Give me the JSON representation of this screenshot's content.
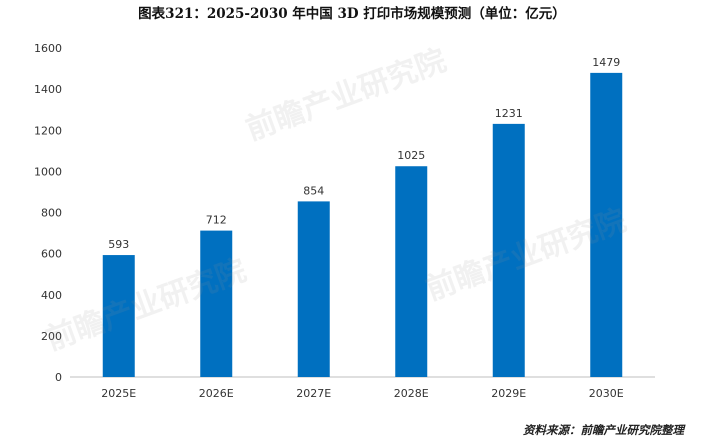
{
  "title": "图表321：2025-2030 年中国 3D 打印市场规模预测（单位：亿元）",
  "source": "资料来源：前瞻产业研究院整理",
  "watermark": "前瞻产业研究院",
  "chart_data": {
    "type": "bar",
    "title": "图表321：2025-2030 年中国 3D 打印市场规模预测（单位：亿元）",
    "categories": [
      "2025E",
      "2026E",
      "2027E",
      "2028E",
      "2029E",
      "2030E"
    ],
    "values": [
      593,
      712,
      854,
      1025,
      1231,
      1479
    ],
    "y_ticks": [
      0,
      200,
      400,
      600,
      800,
      1000,
      1200,
      1400,
      1600
    ],
    "ylim": [
      0,
      1600
    ],
    "xlabel": "",
    "ylabel": "",
    "grid": false,
    "legend": "none",
    "bar_color": "#0070C0"
  }
}
